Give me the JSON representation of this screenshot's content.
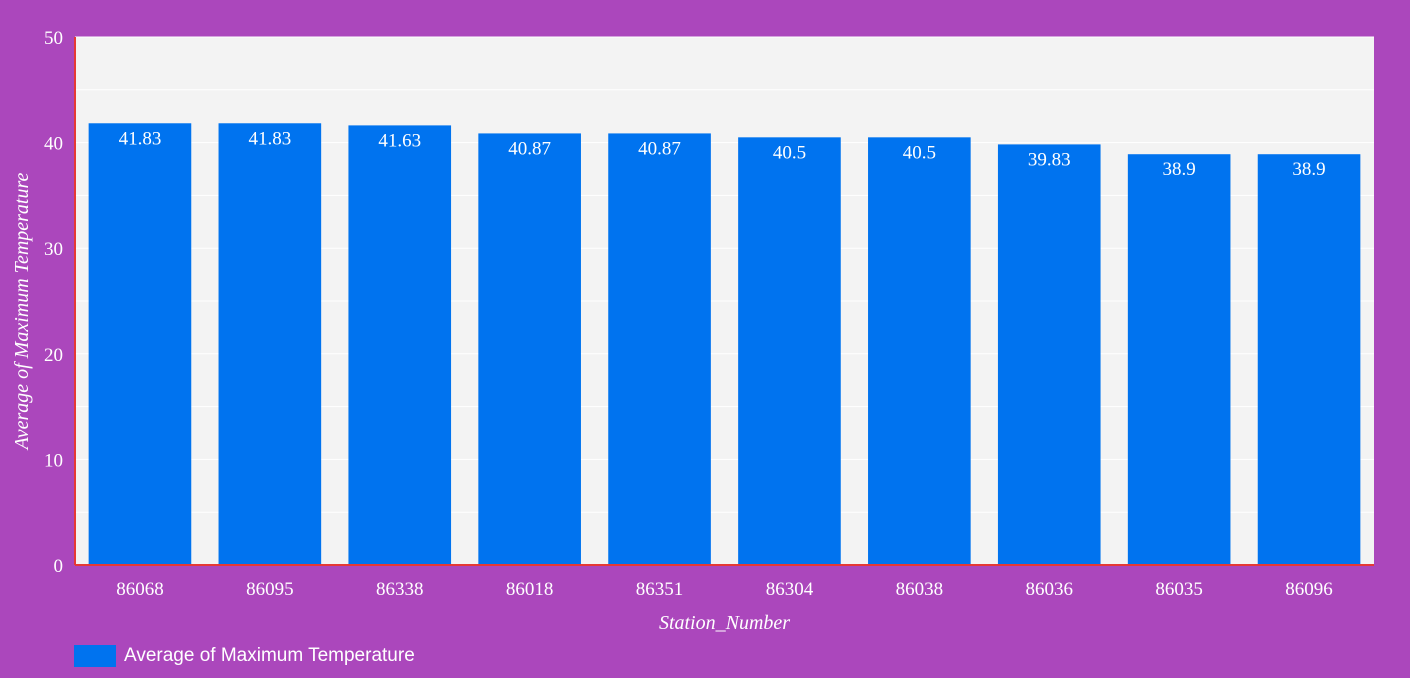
{
  "chart_data": {
    "type": "bar",
    "categories": [
      "86068",
      "86095",
      "86338",
      "86018",
      "86351",
      "86304",
      "86038",
      "86036",
      "86035",
      "86096"
    ],
    "series": [
      {
        "name": "Average of Maximum Temperature",
        "values": [
          41.83,
          41.83,
          41.63,
          40.87,
          40.87,
          40.5,
          40.5,
          39.83,
          38.9,
          38.9
        ],
        "labels": [
          "41.83",
          "41.83",
          "41.63",
          "40.87",
          "40.87",
          "40.5",
          "40.5",
          "39.83",
          "38.9",
          "38.9"
        ]
      }
    ],
    "xlabel": "Station_Number",
    "ylabel": "Average of Maximum Temperature",
    "ylim": [
      0,
      50
    ],
    "yticks": [
      0,
      10,
      20,
      30,
      40,
      50
    ],
    "grid": true,
    "legend_position": "bottom-left",
    "colors": {
      "background": "#ab47bc",
      "plot_area": "#f3f3f3",
      "bar": "#0073ef",
      "axis_line": "#e53935",
      "text": "#ffffff"
    }
  }
}
